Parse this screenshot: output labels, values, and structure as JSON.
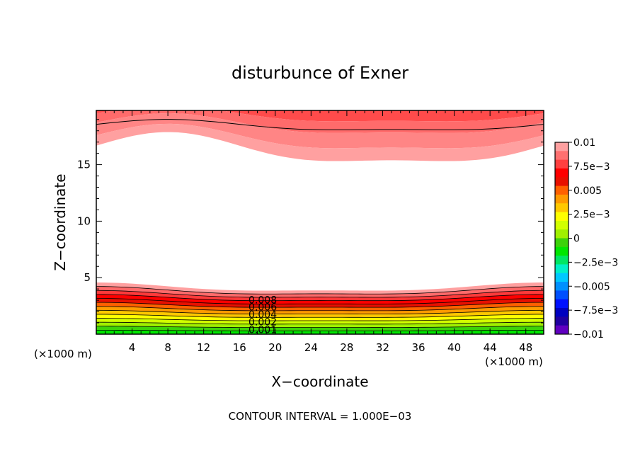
{
  "chart_data": {
    "type": "heatmap",
    "title": "disturbunce of Exner",
    "xlabel": "X−coordinate",
    "ylabel": "Z−coordinate",
    "x_unit_left": "(×1000 m)",
    "x_unit_right": "(×1000 m)",
    "footer": "CONTOUR INTERVAL = 1.000E−03",
    "xlim": [
      0,
      50
    ],
    "ylim": [
      0,
      19.8
    ],
    "xticks": [
      4,
      8,
      12,
      16,
      20,
      24,
      28,
      32,
      36,
      40,
      44,
      48
    ],
    "yticks": [
      5,
      10,
      15
    ],
    "contour_labels": [
      "0.008",
      "0.006",
      "0.004",
      "0.002",
      "0.001"
    ],
    "colorbar": {
      "labels": [
        "0.01",
        "7.5e−3",
        "0.005",
        "2.5e−3",
        "0",
        "−2.5e−3",
        "−0.005",
        "−7.5e−3",
        "−0.01"
      ],
      "colors_top_to_bottom": [
        "#ffa0a0",
        "#ff7070",
        "#ff4040",
        "#ff0000",
        "#e81000",
        "#ff6000",
        "#ff9a00",
        "#ffc800",
        "#ffff00",
        "#d2ff00",
        "#a0f000",
        "#3cd20a",
        "#00e600",
        "#00e664",
        "#00f0c8",
        "#00c8ff",
        "#0090ff",
        "#0050ff",
        "#0010ff",
        "#0000c0",
        "#2000a0",
        "#6000c0"
      ]
    },
    "upper_region": {
      "description_levels": [
        "0.01",
        "0.009",
        "0.008",
        "0.007"
      ],
      "bands_top_to_bottom": [
        "#ff4b4b",
        "#ff6b6b",
        "#ff8585",
        "#ffa0a0"
      ]
    },
    "lower_region": {
      "bands_top_to_bottom": [
        "#ffa0a0",
        "#ff6a6a",
        "#ff3a3a",
        "#ff0000",
        "#e81000",
        "#ff6000",
        "#ff9a00",
        "#ffc800",
        "#ffff00",
        "#d2ff00",
        "#a0f000",
        "#3cd20a",
        "#00e600"
      ]
    }
  }
}
